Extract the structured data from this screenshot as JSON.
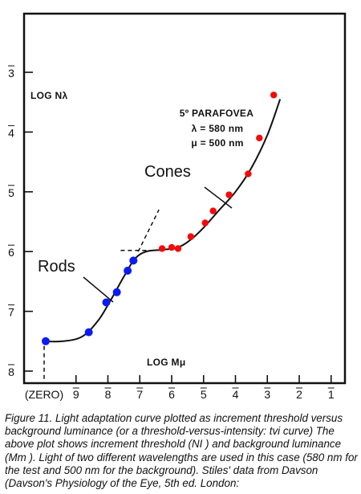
{
  "chart_data": {
    "type": "scatter",
    "inverted_log_axes": true,
    "xlabel": "LOG Mμ",
    "ylabel": "LOG Nλ",
    "xlim": [
      -10.1,
      -0.55
    ],
    "ylim": [
      -2.8,
      -8.05
    ],
    "x_ticks": [
      {
        "value": -9,
        "label": "9"
      },
      {
        "value": -8,
        "label": "8"
      },
      {
        "value": -7,
        "label": "7"
      },
      {
        "value": -6,
        "label": "6"
      },
      {
        "value": -5,
        "label": "5"
      },
      {
        "value": -4,
        "label": "4"
      },
      {
        "value": -3,
        "label": "3"
      },
      {
        "value": -2,
        "label": "2"
      },
      {
        "value": -1,
        "label": "1"
      }
    ],
    "zero_tick_label": "(ZERO)",
    "y_ticks": [
      {
        "value": -3,
        "label": "3"
      },
      {
        "value": -4,
        "label": "4"
      },
      {
        "value": -5,
        "label": "5"
      },
      {
        "value": -6,
        "label": "6"
      },
      {
        "value": -7,
        "label": "7"
      },
      {
        "value": -8,
        "label": "8"
      }
    ],
    "annotation_lines": [
      "5º PARAFOVEA",
      "λ = 580 nm",
      "μ = 500 nm"
    ],
    "series": [
      {
        "name": "Rods",
        "color": "#0b1bf5",
        "x": [
          -9.95,
          -8.6,
          -8.05,
          -7.72,
          -7.38,
          -7.2
        ],
        "y": [
          -7.5,
          -7.35,
          -6.85,
          -6.68,
          -6.32,
          -6.15
        ]
      },
      {
        "name": "Cones",
        "color": "#f50a0a",
        "x": [
          -6.3,
          -6.0,
          -5.8,
          -5.4,
          -4.95,
          -4.7,
          -4.2,
          -3.6,
          -3.25,
          -2.8
        ],
        "y": [
          -5.95,
          -5.93,
          -5.95,
          -5.75,
          -5.52,
          -5.32,
          -5.05,
          -4.7,
          -4.1,
          -3.38
        ]
      }
    ]
  },
  "labels": {
    "cones": "Cones",
    "rods": "Rods"
  },
  "caption": "Figure 11. Light adaptation curve plotted as increment threshold versus background luminance (or a threshold-versus-intensity: tvi curve) The above plot shows increment threshold (NI ) and background luminance (Mm ). Light of two different wavelengths are used in this case (580 nm for the test and 500 nm for the background). Stiles' data from Davson (Davson's Physiology of the Eye, 5th ed. London:"
}
